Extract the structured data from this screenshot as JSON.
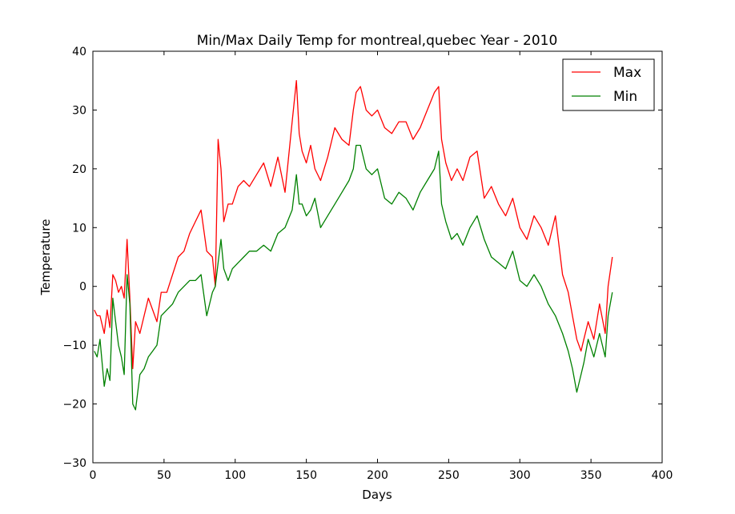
{
  "chart_data": {
    "type": "line",
    "title": "Min/Max Daily Temp for montreal,quebec Year - 2010",
    "xlabel": "Days",
    "ylabel": "Temperature",
    "xlim": [
      0,
      400
    ],
    "ylim": [
      -30,
      40
    ],
    "xticks": [
      0,
      50,
      100,
      150,
      200,
      250,
      300,
      350,
      400
    ],
    "yticks": [
      -30,
      -20,
      -10,
      0,
      10,
      20,
      30,
      40
    ],
    "grid": false,
    "legend_position": "top-right",
    "series": [
      {
        "name": "Max",
        "color": "#ff0000",
        "x": [
          1,
          3,
          5,
          8,
          10,
          12,
          14,
          16,
          18,
          20,
          22,
          24,
          26,
          28,
          30,
          33,
          36,
          39,
          42,
          45,
          48,
          52,
          56,
          60,
          64,
          68,
          72,
          76,
          80,
          84,
          86,
          88,
          90,
          92,
          95,
          98,
          102,
          106,
          110,
          115,
          120,
          125,
          130,
          135,
          140,
          143,
          145,
          147,
          150,
          153,
          156,
          160,
          165,
          170,
          175,
          180,
          183,
          185,
          188,
          192,
          196,
          200,
          205,
          210,
          215,
          220,
          225,
          230,
          235,
          240,
          243,
          245,
          248,
          252,
          256,
          260,
          265,
          270,
          275,
          280,
          285,
          290,
          295,
          300,
          305,
          310,
          315,
          320,
          325,
          330,
          334,
          337,
          340,
          343,
          345,
          348,
          352,
          356,
          360,
          362,
          365
        ],
        "y": [
          -4,
          -5,
          -5,
          -8,
          -4,
          -7,
          2,
          1,
          -1,
          0,
          -2,
          8,
          -2,
          -14,
          -6,
          -8,
          -5,
          -2,
          -4,
          -6,
          -1,
          -1,
          2,
          5,
          6,
          9,
          11,
          13,
          6,
          5,
          0,
          25,
          20,
          11,
          14,
          14,
          17,
          18,
          17,
          19,
          21,
          17,
          22,
          16,
          28,
          35,
          26,
          23,
          21,
          24,
          20,
          18,
          22,
          27,
          25,
          24,
          30,
          33,
          34,
          30,
          29,
          30,
          27,
          26,
          28,
          28,
          25,
          27,
          30,
          33,
          34,
          25,
          21,
          18,
          20,
          18,
          22,
          23,
          15,
          17,
          14,
          12,
          15,
          10,
          8,
          12,
          10,
          7,
          12,
          2,
          -1,
          -5,
          -9,
          -11,
          -9,
          -6,
          -9,
          -3,
          -8,
          0,
          5
        ]
      },
      {
        "name": "Min",
        "color": "#008000",
        "x": [
          1,
          3,
          5,
          8,
          10,
          12,
          14,
          16,
          18,
          20,
          22,
          24,
          26,
          28,
          30,
          33,
          36,
          39,
          42,
          45,
          48,
          52,
          56,
          60,
          64,
          68,
          72,
          76,
          80,
          84,
          86,
          88,
          90,
          92,
          95,
          98,
          102,
          106,
          110,
          115,
          120,
          125,
          130,
          135,
          140,
          143,
          145,
          147,
          150,
          153,
          156,
          160,
          165,
          170,
          175,
          180,
          183,
          185,
          188,
          192,
          196,
          200,
          205,
          210,
          215,
          220,
          225,
          230,
          235,
          240,
          243,
          245,
          248,
          252,
          256,
          260,
          265,
          270,
          275,
          280,
          285,
          290,
          295,
          300,
          305,
          310,
          315,
          320,
          325,
          330,
          334,
          337,
          340,
          343,
          345,
          348,
          352,
          356,
          360,
          362,
          365
        ],
        "y": [
          -11,
          -12,
          -9,
          -17,
          -14,
          -16,
          -2,
          -6,
          -10,
          -12,
          -15,
          2,
          -3,
          -20,
          -21,
          -15,
          -14,
          -12,
          -11,
          -10,
          -5,
          -4,
          -3,
          -1,
          0,
          1,
          1,
          2,
          -5,
          -1,
          0,
          4,
          8,
          3,
          1,
          3,
          4,
          5,
          6,
          6,
          7,
          6,
          9,
          10,
          13,
          19,
          14,
          14,
          12,
          13,
          15,
          10,
          12,
          14,
          16,
          18,
          20,
          24,
          24,
          20,
          19,
          20,
          15,
          14,
          16,
          15,
          13,
          16,
          18,
          20,
          23,
          14,
          11,
          8,
          9,
          7,
          10,
          12,
          8,
          5,
          4,
          3,
          6,
          1,
          0,
          2,
          0,
          -3,
          -5,
          -8,
          -11,
          -14,
          -18,
          -15,
          -13,
          -9,
          -12,
          -8,
          -12,
          -5,
          -1
        ]
      }
    ]
  }
}
